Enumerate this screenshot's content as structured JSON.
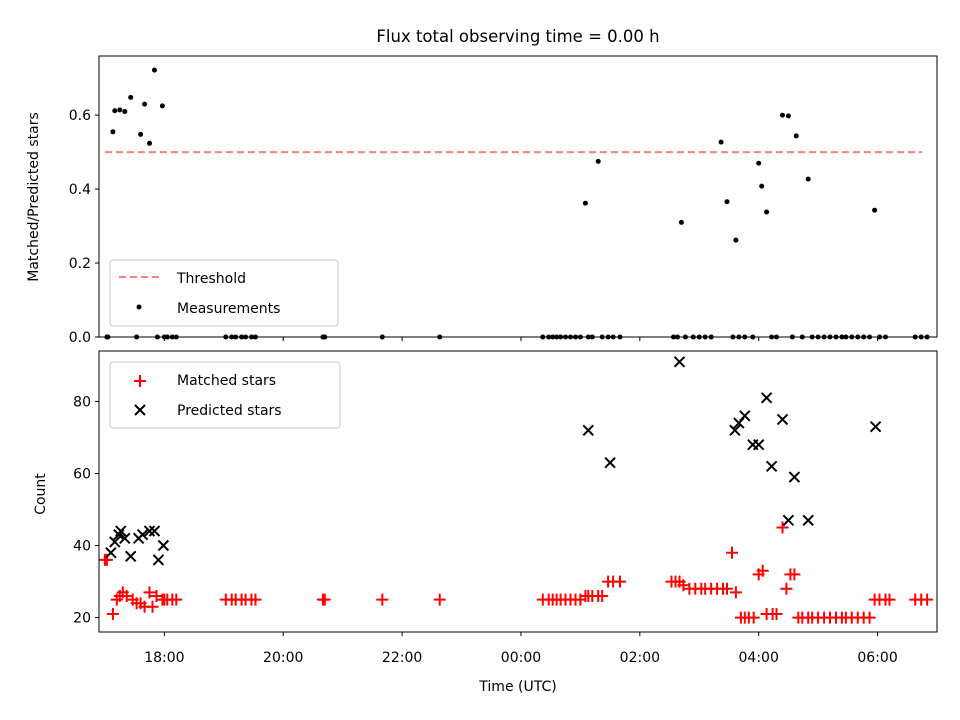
{
  "chart_data": [
    {
      "type": "scatter",
      "title": "Flux total observing time = 0.00 h",
      "xlabel": "",
      "ylabel": "Matched/Predicted stars",
      "xlim": [
        "16:54",
        "07:00"
      ],
      "ylim": [
        0,
        0.76
      ],
      "yticks": [
        0.0,
        0.2,
        0.4,
        0.6
      ],
      "ytick_labels": [
        "0.0",
        "0.2",
        "0.4",
        "0.6"
      ],
      "grid": false,
      "legend_position": "lower-left",
      "threshold": {
        "name": "Threshold",
        "value": 0.5,
        "x": [
          "17:00",
          "06:45"
        ],
        "color": "#ff7f7f",
        "style": "dashed"
      },
      "series": [
        {
          "name": "Measurements",
          "marker": "dot",
          "color": "#000000",
          "x": [
            "17:02",
            "17:03",
            "17:08",
            "17:10",
            "17:15",
            "17:20",
            "17:26",
            "17:32",
            "17:36",
            "17:40",
            "17:45",
            "17:50",
            "17:53",
            "17:58",
            "18:00",
            "18:03",
            "18:08",
            "18:12",
            "19:02",
            "19:08",
            "19:12",
            "19:18",
            "19:22",
            "19:28",
            "19:32",
            "20:40",
            "20:42",
            "21:40",
            "22:38",
            "00:22",
            "00:28",
            "00:32",
            "00:36",
            "00:40",
            "00:45",
            "00:50",
            "00:55",
            "01:00",
            "01:05",
            "01:08",
            "01:12",
            "01:18",
            "01:22",
            "01:28",
            "01:33",
            "01:40",
            "02:34",
            "02:42",
            "02:38",
            "02:46",
            "02:54",
            "03:00",
            "03:06",
            "03:12",
            "03:22",
            "03:28",
            "03:34",
            "03:37",
            "03:40",
            "03:46",
            "03:54",
            "04:00",
            "04:03",
            "04:08",
            "04:13",
            "04:18",
            "04:24",
            "04:30",
            "04:34",
            "04:38",
            "04:44",
            "04:50",
            "04:54",
            "05:00",
            "05:06",
            "05:12",
            "05:18",
            "05:24",
            "05:28",
            "05:34",
            "05:40",
            "05:46",
            "05:52",
            "05:57",
            "06:02",
            "06:08",
            "06:38",
            "06:44",
            "06:50"
          ],
          "y": [
            0,
            0,
            0.555,
            0.612,
            0.614,
            0.61,
            0.648,
            0,
            0.548,
            0.63,
            0.524,
            0.722,
            0,
            0.625,
            0,
            0,
            0,
            0,
            0,
            0,
            0,
            0,
            0,
            0,
            0,
            0,
            0,
            0,
            0,
            0,
            0,
            0,
            0,
            0,
            0,
            0,
            0,
            0,
            0.362,
            0,
            0,
            0.475,
            0,
            0,
            0,
            0,
            0,
            0.31,
            0,
            0,
            0,
            0,
            0,
            0,
            0.527,
            0.366,
            0,
            0.262,
            0,
            0,
            0,
            0.47,
            0.408,
            0.338,
            0,
            0,
            0.6,
            0.598,
            0,
            0.544,
            0,
            0.427,
            0,
            0,
            0,
            0,
            0,
            0,
            0,
            0,
            0,
            0,
            0,
            0.343,
            0,
            0,
            0,
            0,
            0
          ]
        }
      ]
    },
    {
      "type": "scatter",
      "xlabel": "Time (UTC)",
      "ylabel": "Count",
      "xlim": [
        "16:54",
        "07:00"
      ],
      "ylim": [
        16,
        94
      ],
      "xticks": [
        "18:00",
        "20:00",
        "22:00",
        "00:00",
        "02:00",
        "04:00",
        "06:00"
      ],
      "yticks": [
        20,
        40,
        60,
        80
      ],
      "grid": false,
      "legend_position": "upper-left",
      "series": [
        {
          "name": "Matched stars",
          "marker": "plus",
          "color": "#ff0000",
          "x": [
            "17:00",
            "17:02",
            "17:08",
            "17:12",
            "17:15",
            "17:18",
            "17:22",
            "17:28",
            "17:32",
            "17:36",
            "17:40",
            "17:45",
            "17:48",
            "17:52",
            "17:58",
            "18:00",
            "18:03",
            "18:08",
            "18:12",
            "19:02",
            "19:08",
            "19:12",
            "19:18",
            "19:22",
            "19:28",
            "19:32",
            "20:40",
            "20:42",
            "21:40",
            "22:38",
            "00:22",
            "00:28",
            "00:32",
            "00:36",
            "00:40",
            "00:45",
            "00:50",
            "00:55",
            "01:00",
            "01:05",
            "01:08",
            "01:12",
            "01:18",
            "01:22",
            "01:28",
            "01:33",
            "01:40",
            "02:32",
            "02:36",
            "02:40",
            "02:44",
            "02:50",
            "02:56",
            "03:02",
            "03:06",
            "03:12",
            "03:18",
            "03:24",
            "03:28",
            "03:33",
            "03:37",
            "03:42",
            "03:46",
            "03:50",
            "03:55",
            "04:00",
            "04:04",
            "04:08",
            "04:14",
            "04:18",
            "04:24",
            "04:28",
            "04:32",
            "04:36",
            "04:40",
            "04:44",
            "04:50",
            "04:54",
            "05:00",
            "05:06",
            "05:12",
            "05:18",
            "05:24",
            "05:28",
            "05:34",
            "05:40",
            "05:46",
            "05:52",
            "05:57",
            "06:02",
            "06:08",
            "06:12",
            "06:38",
            "06:44",
            "06:50"
          ],
          "y": [
            36,
            36,
            21,
            25,
            26,
            27,
            26,
            25,
            24,
            24,
            23,
            27,
            23,
            26,
            25,
            25,
            25,
            25,
            25,
            25,
            25,
            25,
            25,
            25,
            25,
            25,
            25,
            25,
            25,
            25,
            25,
            25,
            25,
            25,
            25,
            25,
            25,
            25,
            25,
            26,
            26,
            26,
            26,
            26,
            30,
            30,
            30,
            30,
            30,
            30,
            29,
            28,
            28,
            28,
            28,
            28,
            28,
            28,
            28,
            38,
            27,
            20,
            20,
            20,
            20,
            32,
            33,
            21,
            21,
            21,
            45,
            28,
            32,
            32,
            20,
            20,
            20,
            20,
            20,
            20,
            20,
            20,
            20,
            20,
            20,
            20,
            20,
            20,
            25,
            25,
            25,
            25,
            25,
            25,
            25
          ]
        },
        {
          "name": "Predicted stars",
          "marker": "x",
          "color": "#000000",
          "x": [
            "17:06",
            "17:10",
            "17:14",
            "17:16",
            "17:20",
            "17:26",
            "17:34",
            "17:38",
            "17:45",
            "17:50",
            "17:54",
            "17:59",
            "01:08",
            "01:30",
            "02:40",
            "03:36",
            "03:40",
            "03:46",
            "03:54",
            "04:00",
            "04:08",
            "04:13",
            "04:24",
            "04:30",
            "04:36",
            "04:50",
            "05:58"
          ],
          "y": [
            38,
            41,
            43,
            44,
            42,
            37,
            42,
            43,
            44,
            44,
            36,
            40,
            72,
            63,
            91,
            72,
            74,
            76,
            68,
            68,
            81,
            62,
            75,
            47,
            59,
            47,
            73
          ]
        }
      ]
    }
  ]
}
